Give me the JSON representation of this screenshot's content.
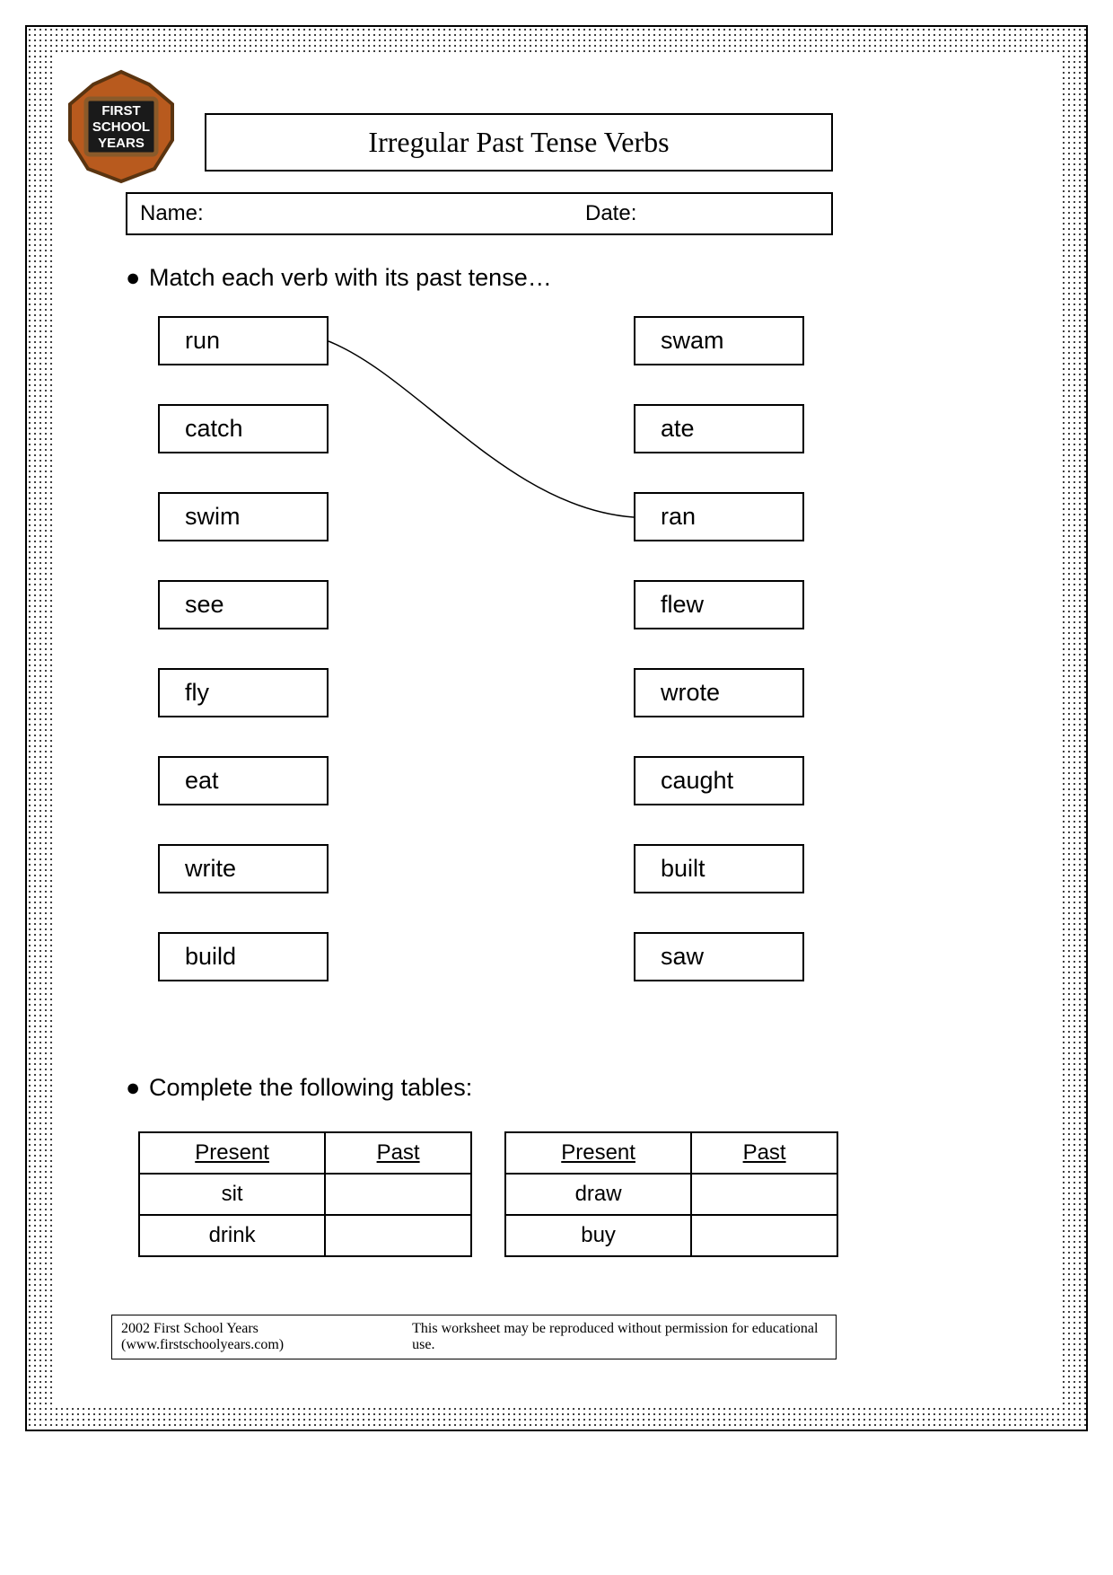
{
  "logo": {
    "lines": [
      "FIRST",
      "SCHOOL",
      "YEARS"
    ],
    "fill": "#b85a1e",
    "chalkboard": "#1a1a1a",
    "border": "#5a3410"
  },
  "title": "Irregular Past Tense Verbs",
  "nameLabel": "Name:",
  "dateLabel": "Date:",
  "instruction1": "Match each verb with its past tense…",
  "instruction2": "Complete the following tables:",
  "leftVerbs": [
    "run",
    "catch",
    "swim",
    "see",
    "fly",
    "eat",
    "write",
    "build"
  ],
  "rightVerbs": [
    "swam",
    "ate",
    "ran",
    "flew",
    "wrote",
    "caught",
    "built",
    "saw"
  ],
  "rowGap": 98,
  "boxWidth": 190,
  "matchLine": {
    "from": 0,
    "to": 2,
    "stroke": "#000",
    "strokeWidth": 1.5
  },
  "tableHeaders": {
    "present": "Present",
    "past": "Past"
  },
  "table1": {
    "rows": [
      [
        "sit",
        ""
      ],
      [
        "drink",
        ""
      ]
    ]
  },
  "table2": {
    "rows": [
      [
        "draw",
        ""
      ],
      [
        "buy",
        ""
      ]
    ]
  },
  "footerLeft": "2002 First School Years  (www.firstschoolyears.com)",
  "footerRight": "This worksheet may be reproduced without permission for educational use.",
  "colors": {
    "text": "#000000",
    "background": "#ffffff",
    "border": "#000000"
  }
}
